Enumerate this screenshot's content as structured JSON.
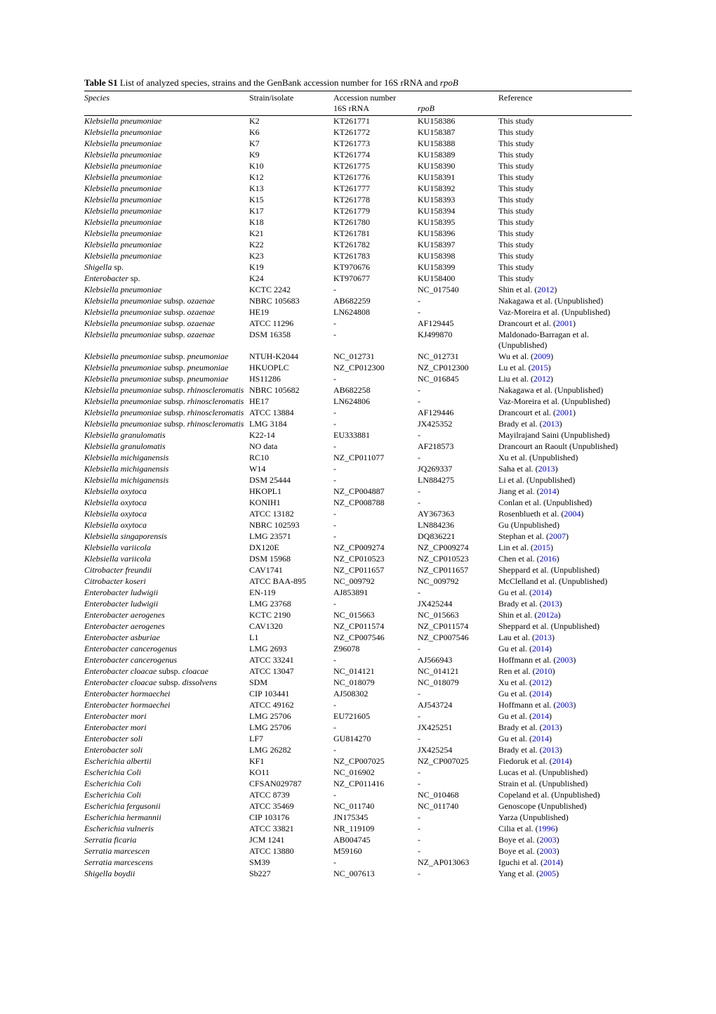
{
  "caption": {
    "label": "Table S1",
    "text_before_italic": " List of analyzed species, strains and the GenBank accession number for 16S rRNA and ",
    "italic_end": "rpoB"
  },
  "headers": {
    "species": "Species",
    "strain": "Strain/isolate",
    "accession": "Accession number",
    "reference": "Reference",
    "sub_16s": "16S rRNA",
    "sub_rpob": "rpoB"
  },
  "rows": [
    {
      "species": "Klebsiella pneumoniae",
      "strain": "K2",
      "a16s": "KT261771",
      "arpob": "KU158386",
      "ref": "This study"
    },
    {
      "species": "Klebsiella pneumoniae",
      "strain": "K6",
      "a16s": "KT261772",
      "arpob": "KU158387",
      "ref": "This study"
    },
    {
      "species": "Klebsiella pneumoniae",
      "strain": "K7",
      "a16s": "KT261773",
      "arpob": "KU158388",
      "ref": "This study"
    },
    {
      "species": "Klebsiella pneumoniae",
      "strain": "K9",
      "a16s": "KT261774",
      "arpob": "KU158389",
      "ref": "This study"
    },
    {
      "species": "Klebsiella pneumoniae",
      "strain": "K10",
      "a16s": "KT261775",
      "arpob": "KU158390",
      "ref": "This study"
    },
    {
      "species": "Klebsiella pneumoniae",
      "strain": "K12",
      "a16s": "KT261776",
      "arpob": "KU158391",
      "ref": "This study"
    },
    {
      "species": "Klebsiella pneumoniae",
      "strain": "K13",
      "a16s": "KT261777",
      "arpob": "KU158392",
      "ref": "This study"
    },
    {
      "species": "Klebsiella pneumoniae",
      "strain": "K15",
      "a16s": "KT261778",
      "arpob": "KU158393",
      "ref": "This study"
    },
    {
      "species": "Klebsiella pneumoniae",
      "strain": "K17",
      "a16s": "KT261779",
      "arpob": "KU158394",
      "ref": "This study"
    },
    {
      "species": "Klebsiella pneumoniae",
      "strain": "K18",
      "a16s": "KT261780",
      "arpob": "KU158395",
      "ref": "This study"
    },
    {
      "species": "Klebsiella pneumoniae",
      "strain": "K21",
      "a16s": "KT261781",
      "arpob": "KU158396",
      "ref": "This study"
    },
    {
      "species": "Klebsiella pneumoniae",
      "strain": "K22",
      "a16s": "KT261782",
      "arpob": "KU158397",
      "ref": "This study"
    },
    {
      "species": "Klebsiella pneumoniae",
      "strain": "K23",
      "a16s": "KT261783",
      "arpob": "KU158398",
      "ref": "This study"
    },
    {
      "species": "Shigella <span class=\"roman\"> sp.</span>",
      "strain": "K19",
      "a16s": "KT970676",
      "arpob": "KU158399",
      "ref": "This study"
    },
    {
      "species": "Enterobacter <span class=\"roman\">sp.</span>",
      "strain": "K24",
      "a16s": "KT970677",
      "arpob": "KU158400",
      "ref": "This study"
    },
    {
      "species": "Klebsiella pneumoniae",
      "strain": "KCTC 2242",
      "a16s": "-",
      "arpob": "NC_017540",
      "ref": "Shin et al. (",
      "link": "2012",
      "ref_after": ")"
    },
    {
      "species": "Klebsiella pneumoniae <span class=\"roman\">subsp.</span> ozaenae",
      "strain": "NBRC 105683",
      "a16s": "AB682259",
      "arpob": "-",
      "ref": "Nakagawa et al. (Unpublished)"
    },
    {
      "species": "Klebsiella pneumoniae <span class=\"roman\">subsp.</span> ozaenae",
      "strain": "HE19",
      "a16s": "LN624808",
      "arpob": "-",
      "ref": "Vaz-Moreira et al. (Unpublished)"
    },
    {
      "species": "Klebsiella pneumoniae <span class=\"roman\">subsp.</span> ozaenae",
      "strain": "ATCC 11296",
      "a16s": "-",
      "arpob": "AF129445",
      "ref": "Drancourt et al. (",
      "link": "2001",
      "ref_after": ")"
    },
    {
      "species": "Klebsiella pneumoniae <span class=\"roman\">subsp.</span> ozaenae",
      "strain": "DSM 16358",
      "a16s": "-",
      "arpob": "KJ499870",
      "ref": "Maldonado-Barragan et al. (Unpublished)"
    },
    {
      "species": "Klebsiella pneumoniae <span class=\"roman\">subsp.</span> pneumoniae",
      "strain": "NTUH-K2044",
      "a16s": "NC_012731",
      "arpob": "NC_012731",
      "ref": "Wu et al. (",
      "link": "2009",
      "ref_after": ")"
    },
    {
      "species": "Klebsiella pneumoniae <span class=\"roman\">subsp.</span> pneumoniae",
      "strain": "HKUOPLC",
      "a16s": "NZ_CP012300",
      "arpob": "NZ_CP012300",
      "ref": "Lu et al. (",
      "link": "2015",
      "ref_after": ")"
    },
    {
      "species": "Klebsiella pneumoniae <span class=\"roman\">subsp.</span> pneumoniae",
      "strain": "HS11286",
      "a16s": "-",
      "arpob": "NC_016845",
      "ref": "Liu et al. (",
      "link": "2012",
      "ref_after": ")"
    },
    {
      "species": "Klebsiella pneumoniae <span class=\"roman\">subsp.</span> rhinoscleromatis",
      "strain": "NBRC 105682",
      "a16s": "AB682258",
      "arpob": "-",
      "ref": "Nakagawa et al. (Unpublished)"
    },
    {
      "species": "Klebsiella pneumoniae <span class=\"roman\">subsp.</span> rhinoscleromatis",
      "strain": "HE17",
      "a16s": "LN624806",
      "arpob": "-",
      "ref": "Vaz-Moreira et al. (Unpublished)"
    },
    {
      "species": "Klebsiella pneumoniae <span class=\"roman\">subsp.</span> rhinoscleromatis",
      "strain": "ATCC 13884",
      "a16s": "-",
      "arpob": "AF129446",
      "ref": "Drancourt et al. (",
      "link": "2001",
      "ref_after": ")"
    },
    {
      "species": "Klebsiella pneumoniae <span class=\"roman\">subsp.</span> rhinoscleromatis",
      "strain": "LMG 3184",
      "a16s": "-",
      "arpob": "JX425352",
      "ref": "Brady et al. (",
      "link": "2013",
      "ref_after": ")"
    },
    {
      "species": "Klebsiella granulomatis",
      "strain": "K22-14",
      "a16s": "EU333881",
      "arpob": "-",
      "ref": "Mayilrajand Saini (Unpublished)"
    },
    {
      "species": "Klebsiella granulomatis",
      "strain": "NO data",
      "a16s": "-",
      "arpob": "AF218573",
      "ref": "Drancourt an Raoult (Unpublished)"
    },
    {
      "species": "Klebsiella michiganensis",
      "strain": "RC10",
      "a16s": "NZ_CP011077",
      "arpob": "-",
      "ref": "Xu et al. (Unpublished)"
    },
    {
      "species": "Klebsiella michiganensis",
      "strain": "W14",
      "a16s": "-",
      "arpob": "JQ269337",
      "ref": "Saha et al. (",
      "link": "2013",
      "ref_after": ")"
    },
    {
      "species": "Klebsiella michiganensis",
      "strain": "DSM 25444",
      "a16s": "-",
      "arpob": "LN884275",
      "ref": "Li et al. (Unpublished)"
    },
    {
      "species": "Klebsiella oxytoca",
      "strain": "HKOPL1",
      "a16s": "NZ_CP004887",
      "arpob": "-",
      "ref": "Jiang et al. (",
      "link": "2014",
      "ref_after": ")"
    },
    {
      "species": "Klebsiella oxytoca",
      "strain": "KONIH1",
      "a16s": "NZ_CP008788",
      "arpob": "-",
      "ref": "Conlan et al. (Unpublished)"
    },
    {
      "species": "Klebsiella oxytoca",
      "strain": "ATCC 13182",
      "a16s": "-",
      "arpob": "AY367363",
      "ref": "Rosenblueth et al. (",
      "link": "2004",
      "ref_after": ")"
    },
    {
      "species": "Klebsiella oxytoca",
      "strain": "NBRC 102593",
      "a16s": "-",
      "arpob": "LN884236",
      "ref": "Gu (Unpublished)"
    },
    {
      "species": "Klebsiella singaporensis",
      "strain": "LMG 23571",
      "a16s": "-",
      "arpob": "DQ836221",
      "ref": "Stephan et al. (",
      "link": "2007",
      "ref_after": ")"
    },
    {
      "species": "Klebsiella variicola",
      "strain": "DX120E",
      "a16s": "NZ_CP009274",
      "arpob": "NZ_CP009274",
      "ref": "Lin et al. (",
      "link": "2015",
      "ref_after": ")"
    },
    {
      "species": "Klebsiella variicola",
      "strain": "DSM 15968",
      "a16s": "NZ_CP010523",
      "arpob": "NZ_CP010523",
      "ref": "Chen et al. (",
      "link": "2016",
      "ref_after": ")"
    },
    {
      "species": "Citrobacter freundii",
      "strain": "CAV1741",
      "a16s": "NZ_CP011657",
      "arpob": "NZ_CP011657",
      "ref": "Sheppard et al. (Unpublished)"
    },
    {
      "species": "Citrobacter koseri",
      "strain": "ATCC BAA-895",
      "a16s": "NC_009792",
      "arpob": "NC_009792",
      "ref": "McClelland et al. (Unpublished)"
    },
    {
      "species": "Enterobacter  ludwigii",
      "strain": "EN-119",
      "a16s": "AJ853891",
      "arpob": "-",
      "ref": "Gu et al. (",
      "link": "2014",
      "ref_after": ")"
    },
    {
      "species": "Enterobacter  ludwigii",
      "strain": "LMG 23768",
      "a16s": "-",
      "arpob": "JX425244",
      "ref": "Brady et al. (",
      "link": "2013",
      "ref_after": ")"
    },
    {
      "species": "Enterobacter aerogenes",
      "strain": "KCTC 2190",
      "a16s": "NC_015663",
      "arpob": "NC_015663",
      "ref": "Shin et al. (",
      "link": "2012a",
      "ref_after": ")"
    },
    {
      "species": "Enterobacter aerogenes",
      "strain": "CAV1320",
      "a16s": "NZ_CP011574",
      "arpob": "NZ_CP011574",
      "ref": "Sheppard et al. (Unpublished)"
    },
    {
      "species": "Enterobacter asburiae",
      "strain": "L1",
      "a16s": "NZ_CP007546",
      "arpob": "NZ_CP007546",
      "ref": "Lau et al. (",
      "link": "2013",
      "ref_after": ")"
    },
    {
      "species": "Enterobacter cancerogenus",
      "strain": "LMG 2693",
      "a16s": "Z96078",
      "arpob": "-",
      "ref": "Gu et al. (",
      "link": "2014",
      "ref_after": ")"
    },
    {
      "species": "Enterobacter cancerogenus",
      "strain": "ATCC 33241",
      "a16s": "-",
      "arpob": "AJ566943",
      "ref": "Hoffmann et al. (",
      "link": "2003",
      "ref_after": ")"
    },
    {
      "species": "Enterobacter cloacae <span class=\"roman\">subsp.</span> cloacae",
      "strain": "ATCC 13047",
      "a16s": "NC_014121",
      "arpob": "NC_014121",
      "ref": "Ren et al. (",
      "link": "2010",
      "ref_after": ")"
    },
    {
      "species": "Enterobacter cloacae <span class=\"roman\">subsp.</span> dissolvens",
      "strain": "SDM",
      "a16s": "NC_018079",
      "arpob": "NC_018079",
      "ref": "Xu et al. (",
      "link": "2012",
      "ref_after": ")"
    },
    {
      "species": "Enterobacter hormaechei",
      "strain": "CIP 103441",
      "a16s": "AJ508302",
      "arpob": "-",
      "ref": "Gu et al. (",
      "link": "2014",
      "ref_after": ")"
    },
    {
      "species": "Enterobacter hormaechei",
      "strain": "ATCC 49162",
      "a16s": "-",
      "arpob": "AJ543724",
      "ref": "Hoffmann et al. (",
      "link": "2003",
      "ref_after": ")"
    },
    {
      "species": "Enterobacter mori",
      "strain": "LMG 25706",
      "a16s": "EU721605",
      "arpob": "-",
      "ref": "Gu et al. (",
      "link": "2014",
      "ref_after": ")"
    },
    {
      "species": "Enterobacter mori",
      "strain": "LMG 25706",
      "a16s": "-",
      "arpob": "JX425251",
      "ref": "Brady et al. (",
      "link": "2013",
      "ref_after": ")"
    },
    {
      "species": "Enterobacter soli",
      "strain": "LF7",
      "a16s": "GU814270",
      "arpob": "-",
      "ref": "Gu et al. (",
      "link": "2014",
      "ref_after": ")"
    },
    {
      "species": "Enterobacter soli",
      "strain": "LMG 26282",
      "a16s": "-",
      "arpob": "JX425254",
      "ref": "Brady et al. (",
      "link": "2013",
      "ref_after": ")"
    },
    {
      "species": "Escherichia albertii",
      "strain": "KF1",
      "a16s": "NZ_CP007025",
      "arpob": "NZ_CP007025",
      "ref": "Fiedoruk et al. (",
      "link": "2014",
      "ref_after": ")"
    },
    {
      "species": "Escherichia Coli",
      "strain": "KO11",
      "a16s": "NC_016902",
      "arpob": "-",
      "ref": "Lucas et al. (Unpublished)"
    },
    {
      "species": "Escherichia Coli",
      "strain": "CFSAN029787",
      "a16s": "NZ_CP011416",
      "arpob": "-",
      "ref": "Strain et al. (Unpublished)"
    },
    {
      "species": "Escherichia Coli",
      "strain": "ATCC 8739",
      "a16s": "-",
      "arpob": "NC_010468",
      "ref": "Copeland et al. (Unpublished)"
    },
    {
      "species": "Escherichia fergusonii",
      "strain": "ATCC 35469",
      "a16s": "NC_011740",
      "arpob": "NC_011740",
      "ref": "Genoscope (Unpublished)"
    },
    {
      "species": "Escherichia hermannii",
      "strain": "CIP 103176",
      "a16s": "JN175345",
      "arpob": "-",
      "ref": "Yarza (Unpublished)"
    },
    {
      "species": "Escherichia vulneris",
      "strain": "ATCC 33821",
      "a16s": "NR_119109",
      "arpob": "-",
      "ref": "Cilia et al. (",
      "link": "1996",
      "ref_after": ")"
    },
    {
      "species": "Serratia ficaria",
      "strain": "JCM 1241",
      "a16s": "AB004745",
      "arpob": "-",
      "ref": "Boye et al. (",
      "link": "2003",
      "ref_after": ")"
    },
    {
      "species": "Serratia marcescen",
      "strain": "ATCC 13880",
      "a16s": "M59160",
      "arpob": "-",
      "ref": "Boye et al. (",
      "link": "2003",
      "ref_after": ")"
    },
    {
      "species": "Serratia marcescens",
      "strain": "SM39",
      "a16s": "-",
      "arpob": "NZ_AP013063",
      "ref": "Iguchi et al. (",
      "link": "2014",
      "ref_after": ")"
    },
    {
      "species": "Shigella boydii",
      "strain": "Sb227",
      "a16s": "NC_007613",
      "arpob": "-",
      "ref": "Yang et al. (",
      "link": "2005",
      "ref_after": ")"
    }
  ]
}
